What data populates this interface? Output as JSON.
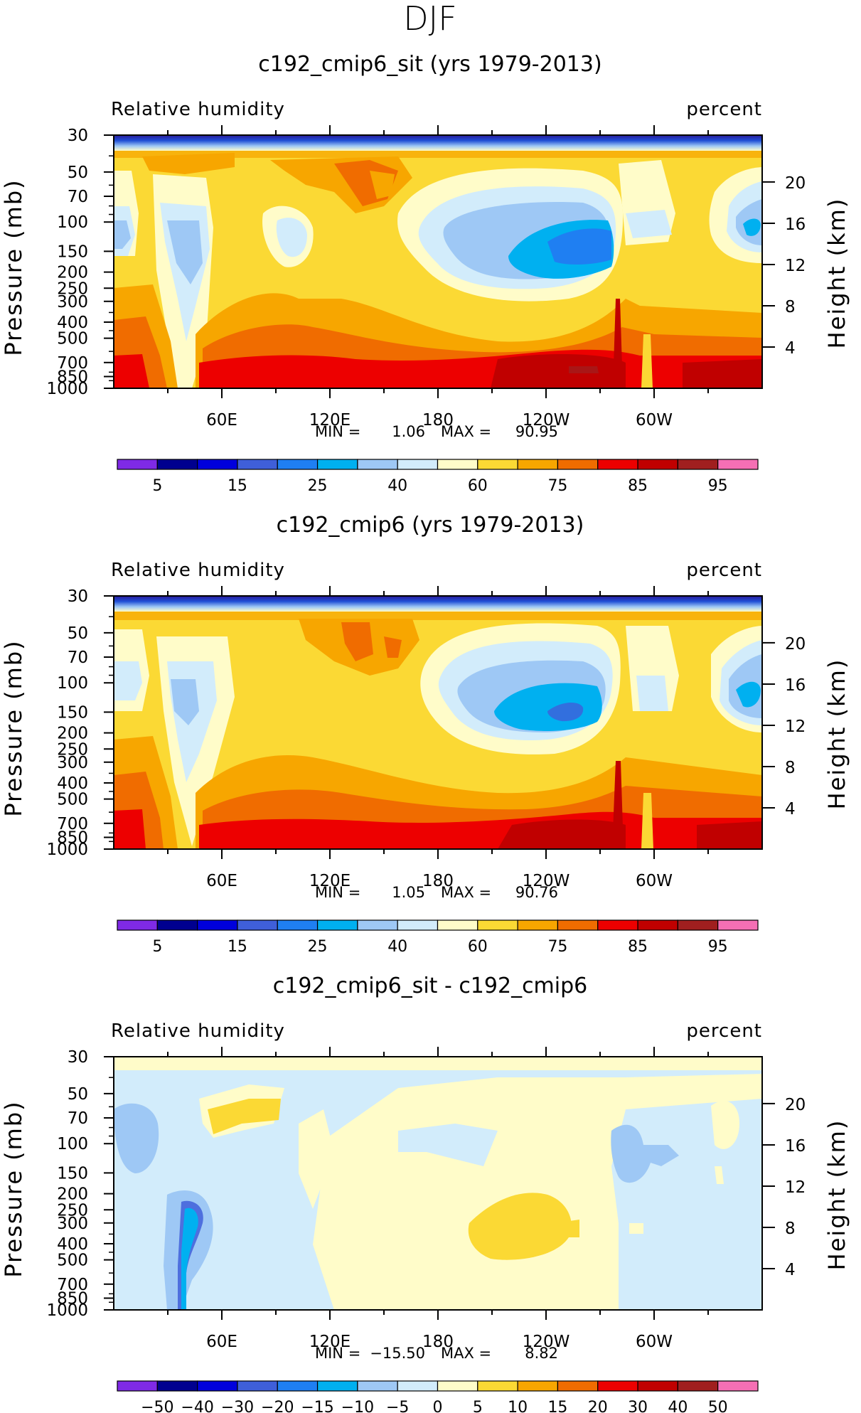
{
  "figure": {
    "season_title": "DJF",
    "variable_label": "Relative humidity",
    "units_label": "percent",
    "left_axis_label": "Pressure (mb)",
    "right_axis_label": "Height (km)"
  },
  "chart_data": [
    {
      "type": "heatmap",
      "id": "panel-1",
      "title": "c192_cmip6_sit (yrs 1979-2013)",
      "left_label": "Relative humidity",
      "right_label": "percent",
      "ylabel": "Pressure (mb)",
      "ylabel_right": "Height (km)",
      "x_ticks": [
        "60E",
        "120E",
        "180",
        "120W",
        "60W"
      ],
      "y_ticks": [
        "30",
        "50",
        "70",
        "100",
        "150",
        "200",
        "250",
        "300",
        "400",
        "500",
        "700",
        "850",
        "1000"
      ],
      "y2_ticks": [
        "20",
        "16",
        "12",
        "8",
        "4"
      ],
      "stats_min_label": "MIN =",
      "stats_min": "1.06",
      "stats_max_label": "MAX =",
      "stats_max": "90.95",
      "levels": [
        "5",
        "10",
        "15",
        "20",
        "25",
        "30",
        "40",
        "50",
        "60",
        "70",
        "75",
        "80",
        "85",
        "90",
        "95"
      ],
      "level_labels": [
        "5",
        "15",
        "25",
        "40",
        "60",
        "75",
        "85",
        "95"
      ],
      "colors": [
        "#7f2ae6",
        "#00008f",
        "#0000dc",
        "#3f5fd9",
        "#1f7ff2",
        "#00b0f0",
        "#9ec8f5",
        "#d2ecfb",
        "#fffcc9",
        "#fbd934",
        "#f7a600",
        "#f06c00",
        "#ed0000",
        "#c00000",
        "#a01f1f",
        "#f56fb4"
      ]
    },
    {
      "type": "heatmap",
      "id": "panel-2",
      "title": "c192_cmip6 (yrs 1979-2013)",
      "left_label": "Relative humidity",
      "right_label": "percent",
      "ylabel": "Pressure (mb)",
      "ylabel_right": "Height (km)",
      "x_ticks": [
        "60E",
        "120E",
        "180",
        "120W",
        "60W"
      ],
      "y_ticks": [
        "30",
        "50",
        "70",
        "100",
        "150",
        "200",
        "250",
        "300",
        "400",
        "500",
        "700",
        "850",
        "1000"
      ],
      "y2_ticks": [
        "20",
        "16",
        "12",
        "8",
        "4"
      ],
      "stats_min_label": "MIN =",
      "stats_min": "1.05",
      "stats_max_label": "MAX =",
      "stats_max": "90.76",
      "levels": [
        "5",
        "10",
        "15",
        "20",
        "25",
        "30",
        "40",
        "50",
        "60",
        "70",
        "75",
        "80",
        "85",
        "90",
        "95"
      ],
      "level_labels": [
        "5",
        "15",
        "25",
        "40",
        "60",
        "75",
        "85",
        "95"
      ],
      "colors": [
        "#7f2ae6",
        "#00008f",
        "#0000dc",
        "#3f5fd9",
        "#1f7ff2",
        "#00b0f0",
        "#9ec8f5",
        "#d2ecfb",
        "#fffcc9",
        "#fbd934",
        "#f7a600",
        "#f06c00",
        "#ed0000",
        "#c00000",
        "#a01f1f",
        "#f56fb4"
      ]
    },
    {
      "type": "heatmap",
      "id": "panel-3",
      "title": "c192_cmip6_sit - c192_cmip6",
      "left_label": "Relative humidity",
      "right_label": "percent",
      "ylabel": "Pressure (mb)",
      "ylabel_right": "Height (km)",
      "x_ticks": [
        "60E",
        "120E",
        "180",
        "120W",
        "60W"
      ],
      "y_ticks": [
        "30",
        "50",
        "70",
        "100",
        "150",
        "200",
        "250",
        "300",
        "400",
        "500",
        "700",
        "850",
        "1000"
      ],
      "y2_ticks": [
        "20",
        "16",
        "12",
        "8",
        "4"
      ],
      "stats_min_label": "MIN =",
      "stats_min": "−15.50",
      "stats_max_label": "MAX =",
      "stats_max": "8.82",
      "levels": [
        "−50",
        "−40",
        "−30",
        "−20",
        "−15",
        "−10",
        "−5",
        "0",
        "5",
        "10",
        "15",
        "20",
        "30",
        "40",
        "50"
      ],
      "level_labels": [
        "−50",
        "−40",
        "−30",
        "−20",
        "−15",
        "−10",
        "−5",
        "0",
        "5",
        "10",
        "15",
        "20",
        "30",
        "40",
        "50"
      ],
      "colors": [
        "#7f2ae6",
        "#00008f",
        "#0000dc",
        "#3f5fd9",
        "#1f7ff2",
        "#00b0f0",
        "#9ec8f5",
        "#d2ecfb",
        "#fffcc9",
        "#fbd934",
        "#f7a600",
        "#f06c00",
        "#ed0000",
        "#c00000",
        "#a01f1f",
        "#f56fb4"
      ]
    }
  ]
}
